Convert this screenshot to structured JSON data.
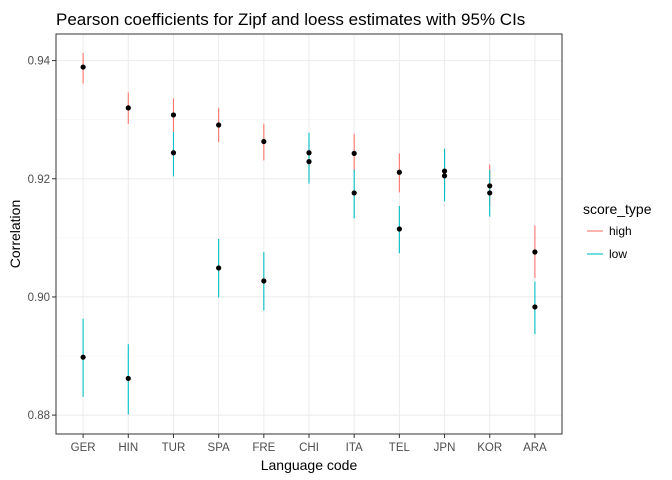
{
  "chart_data": {
    "type": "scatter",
    "title": "Pearson coefficients for Zipf and loess estimates with 95% CIs",
    "xlabel": "Language code",
    "ylabel": "Correlation",
    "categories": [
      "GER",
      "HIN",
      "TUR",
      "SPA",
      "FRE",
      "CHI",
      "ITA",
      "TEL",
      "JPN",
      "KOR",
      "ARA"
    ],
    "ylim": [
      0.8768,
      0.9445
    ],
    "yticks": [
      0.88,
      0.9,
      0.92,
      0.94
    ],
    "ytick_labels": [
      "0.88",
      "0.90",
      "0.92",
      "0.94"
    ],
    "grid": true,
    "legend": {
      "title": "score_type",
      "position": "right"
    },
    "series": [
      {
        "name": "high",
        "color": "#F8766D",
        "values": [
          0.9389,
          0.932,
          0.9308,
          0.9291,
          0.9263,
          0.9229,
          0.9243,
          0.9211,
          0.9213,
          0.9188,
          0.9076
        ],
        "ci_low": [
          0.9361,
          0.9293,
          0.9279,
          0.9262,
          0.9231,
          0.9193,
          0.921,
          0.9177,
          0.918,
          0.9153,
          0.9032
        ],
        "ci_high": [
          0.9413,
          0.9346,
          0.9336,
          0.932,
          0.9293,
          0.9263,
          0.9276,
          0.9243,
          0.9247,
          0.9224,
          0.9121
        ]
      },
      {
        "name": "low",
        "color": "#00BFC4",
        "values": [
          0.8898,
          0.8862,
          0.9244,
          0.9049,
          0.9027,
          0.9244,
          0.9176,
          0.9115,
          0.9205,
          0.9176,
          0.8983
        ],
        "ci_low": [
          0.8831,
          0.8801,
          0.9204,
          0.8999,
          0.8977,
          0.9192,
          0.9133,
          0.9074,
          0.9162,
          0.9136,
          0.8937
        ],
        "ci_high": [
          0.8963,
          0.892,
          0.9279,
          0.9098,
          0.9076,
          0.9278,
          0.9215,
          0.9154,
          0.9251,
          0.9215,
          0.9026
        ]
      }
    ]
  }
}
